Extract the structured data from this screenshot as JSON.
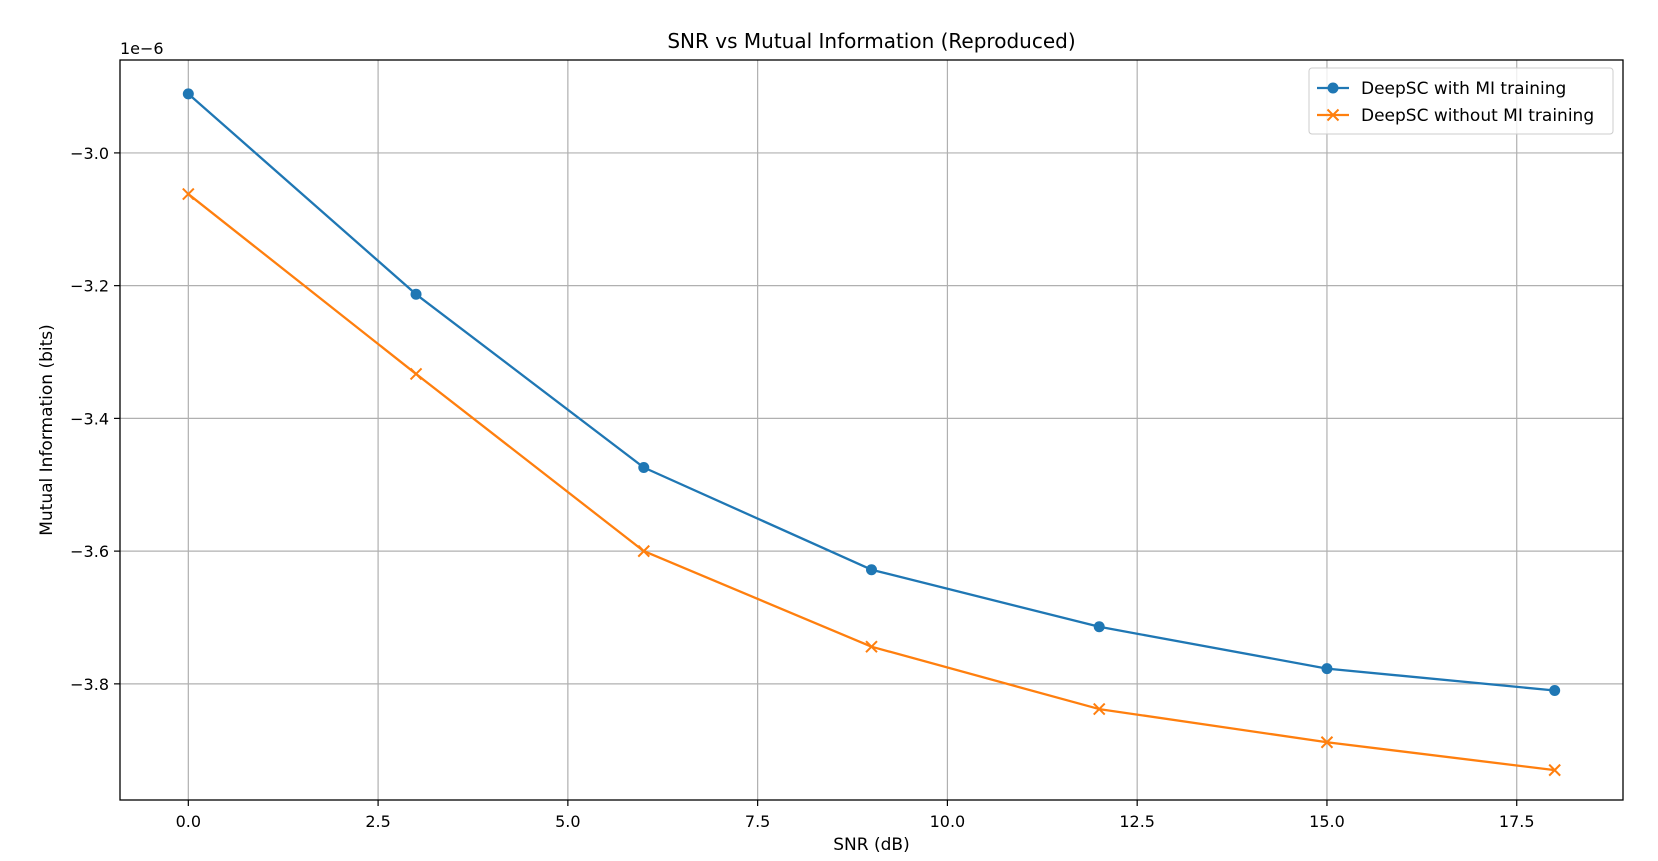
{
  "chart_data": {
    "type": "line",
    "title": "SNR vs Mutual Information (Reproduced)",
    "xlabel": "SNR (dB)",
    "ylabel": "Mutual Information (bits)",
    "y_offset_label": "1e−6",
    "xlim": [
      -0.9,
      18.9
    ],
    "ylim": [
      -3.975,
      -2.86
    ],
    "x_ticks": [
      0.0,
      2.5,
      5.0,
      7.5,
      10.0,
      12.5,
      15.0,
      17.5
    ],
    "x_tick_labels": [
      "0.0",
      "2.5",
      "5.0",
      "7.5",
      "10.0",
      "12.5",
      "15.0",
      "17.5"
    ],
    "y_ticks": [
      -3.0,
      -3.2,
      -3.4,
      -3.6,
      -3.8
    ],
    "y_tick_labels": [
      "−3.0",
      "−3.2",
      "−3.4",
      "−3.6",
      "−3.8"
    ],
    "grid": true,
    "legend_position": "top-right",
    "x": [
      0,
      3,
      6,
      9,
      12,
      15,
      18
    ],
    "series": [
      {
        "name": "DeepSC with MI training",
        "color": "#1f77b4",
        "marker": "circle",
        "values": [
          -2.911,
          -3.213,
          -3.474,
          -3.628,
          -3.714,
          -3.777,
          -3.81
        ]
      },
      {
        "name": "DeepSC without MI training",
        "color": "#ff7f0e",
        "marker": "x",
        "values": [
          -3.062,
          -3.333,
          -3.6,
          -3.744,
          -3.838,
          -3.888,
          -3.93
        ]
      }
    ]
  }
}
